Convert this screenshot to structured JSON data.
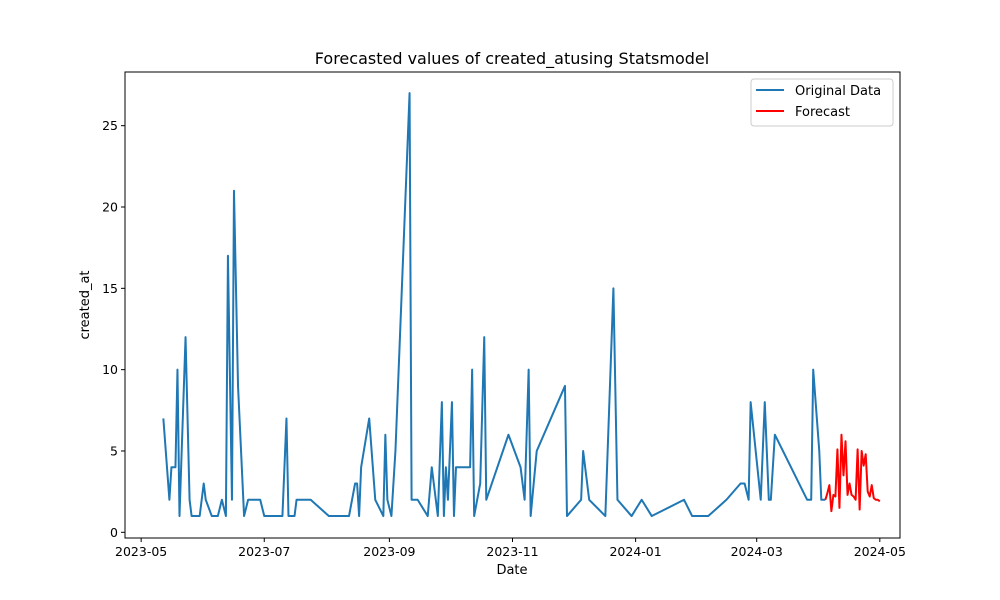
{
  "chart_data": {
    "type": "line",
    "title": "Forecasted values of created_atusing Statsmodel",
    "xlabel": "Date",
    "ylabel": "created_at",
    "xlim": [
      "2023-04-23",
      "2024-05-11"
    ],
    "ylim": [
      -0.35,
      28.3
    ],
    "x_ticks": [
      "2023-05-01",
      "2023-07-01",
      "2023-09-01",
      "2023-11-01",
      "2024-01-01",
      "2024-03-01",
      "2024-05-01"
    ],
    "x_tick_labels": [
      "2023-05",
      "2023-07",
      "2023-09",
      "2023-11",
      "2024-01",
      "2024-03",
      "2024-05"
    ],
    "y_ticks": [
      0,
      5,
      10,
      15,
      20,
      25
    ],
    "y_tick_labels": [
      "0",
      "5",
      "10",
      "15",
      "20",
      "25"
    ],
    "grid": false,
    "legend_position": "top-right",
    "series": [
      {
        "name": "Original Data",
        "color": "#1f77b4",
        "points": [
          [
            "2023-05-12",
            7
          ],
          [
            "2023-05-15",
            2
          ],
          [
            "2023-05-16",
            4
          ],
          [
            "2023-05-18",
            4
          ],
          [
            "2023-05-19",
            10
          ],
          [
            "2023-05-20",
            1
          ],
          [
            "2023-05-23",
            12
          ],
          [
            "2023-05-25",
            2
          ],
          [
            "2023-05-26",
            1
          ],
          [
            "2023-05-30",
            1
          ],
          [
            "2023-06-01",
            3
          ],
          [
            "2023-06-02",
            2
          ],
          [
            "2023-06-05",
            1
          ],
          [
            "2023-06-08",
            1
          ],
          [
            "2023-06-10",
            2
          ],
          [
            "2023-06-12",
            1
          ],
          [
            "2023-06-13",
            17
          ],
          [
            "2023-06-15",
            2
          ],
          [
            "2023-06-16",
            21
          ],
          [
            "2023-06-18",
            9
          ],
          [
            "2023-06-21",
            1
          ],
          [
            "2023-06-23",
            2
          ],
          [
            "2023-06-29",
            2
          ],
          [
            "2023-07-01",
            1
          ],
          [
            "2023-07-10",
            1
          ],
          [
            "2023-07-12",
            7
          ],
          [
            "2023-07-13",
            1
          ],
          [
            "2023-07-16",
            1
          ],
          [
            "2023-07-17",
            2
          ],
          [
            "2023-07-24",
            2
          ],
          [
            "2023-08-02",
            1
          ],
          [
            "2023-08-12",
            1
          ],
          [
            "2023-08-15",
            3
          ],
          [
            "2023-08-16",
            3
          ],
          [
            "2023-08-17",
            1
          ],
          [
            "2023-08-18",
            4
          ],
          [
            "2023-08-22",
            7
          ],
          [
            "2023-08-25",
            2
          ],
          [
            "2023-08-29",
            1
          ],
          [
            "2023-08-30",
            6
          ],
          [
            "2023-08-31",
            2
          ],
          [
            "2023-09-02",
            1
          ],
          [
            "2023-09-04",
            5
          ],
          [
            "2023-09-11",
            27
          ],
          [
            "2023-09-12",
            2
          ],
          [
            "2023-09-15",
            2
          ],
          [
            "2023-09-20",
            1
          ],
          [
            "2023-09-22",
            4
          ],
          [
            "2023-09-25",
            1
          ],
          [
            "2023-09-27",
            8
          ],
          [
            "2023-09-28",
            1
          ],
          [
            "2023-09-29",
            4
          ],
          [
            "2023-09-30",
            2
          ],
          [
            "2023-10-02",
            8
          ],
          [
            "2023-10-03",
            1
          ],
          [
            "2023-10-04",
            4
          ],
          [
            "2023-10-09",
            4
          ],
          [
            "2023-10-11",
            4
          ],
          [
            "2023-10-12",
            10
          ],
          [
            "2023-10-13",
            1
          ],
          [
            "2023-10-16",
            3
          ],
          [
            "2023-10-18",
            12
          ],
          [
            "2023-10-19",
            2
          ],
          [
            "2023-10-30",
            6
          ],
          [
            "2023-11-05",
            4
          ],
          [
            "2023-11-07",
            2
          ],
          [
            "2023-11-09",
            10
          ],
          [
            "2023-11-10",
            1
          ],
          [
            "2023-11-13",
            5
          ],
          [
            "2023-11-27",
            9
          ],
          [
            "2023-11-28",
            1
          ],
          [
            "2023-12-05",
            2
          ],
          [
            "2023-12-06",
            5
          ],
          [
            "2023-12-09",
            2
          ],
          [
            "2023-12-17",
            1
          ],
          [
            "2023-12-21",
            15
          ],
          [
            "2023-12-23",
            2
          ],
          [
            "2023-12-30",
            1
          ],
          [
            "2024-01-04",
            2
          ],
          [
            "2024-01-09",
            1
          ],
          [
            "2024-01-25",
            2
          ],
          [
            "2024-01-29",
            1
          ],
          [
            "2024-02-06",
            1
          ],
          [
            "2024-02-15",
            2
          ],
          [
            "2024-02-22",
            3
          ],
          [
            "2024-02-24",
            3
          ],
          [
            "2024-02-26",
            2
          ],
          [
            "2024-02-27",
            8
          ],
          [
            "2024-03-03",
            2
          ],
          [
            "2024-03-05",
            8
          ],
          [
            "2024-03-07",
            2
          ],
          [
            "2024-03-08",
            2
          ],
          [
            "2024-03-10",
            6
          ],
          [
            "2024-03-26",
            2
          ],
          [
            "2024-03-28",
            2
          ],
          [
            "2024-03-29",
            10
          ],
          [
            "2024-04-01",
            5
          ],
          [
            "2024-04-02",
            2
          ],
          [
            "2024-04-04",
            2
          ]
        ]
      },
      {
        "name": "Forecast",
        "color": "#ff0000",
        "points": [
          [
            "2024-04-04",
            2.0
          ],
          [
            "2024-04-05",
            2.4
          ],
          [
            "2024-04-06",
            2.9
          ],
          [
            "2024-04-07",
            1.3
          ],
          [
            "2024-04-08",
            2.3
          ],
          [
            "2024-04-09",
            2.2
          ],
          [
            "2024-04-10",
            5.1
          ],
          [
            "2024-04-11",
            1.5
          ],
          [
            "2024-04-12",
            6.0
          ],
          [
            "2024-04-13",
            3.5
          ],
          [
            "2024-04-14",
            5.6
          ],
          [
            "2024-04-15",
            2.3
          ],
          [
            "2024-04-16",
            3.0
          ],
          [
            "2024-04-17",
            2.3
          ],
          [
            "2024-04-18",
            2.2
          ],
          [
            "2024-04-19",
            2.0
          ],
          [
            "2024-04-20",
            5.1
          ],
          [
            "2024-04-21",
            1.4
          ],
          [
            "2024-04-22",
            5.0
          ],
          [
            "2024-04-23",
            4.1
          ],
          [
            "2024-04-24",
            4.8
          ],
          [
            "2024-04-25",
            2.5
          ],
          [
            "2024-04-26",
            2.2
          ],
          [
            "2024-04-27",
            2.9
          ],
          [
            "2024-04-28",
            2.1
          ],
          [
            "2024-04-29",
            2.0
          ],
          [
            "2024-04-30",
            2.0
          ],
          [
            "2024-05-01",
            1.9
          ]
        ]
      }
    ]
  }
}
